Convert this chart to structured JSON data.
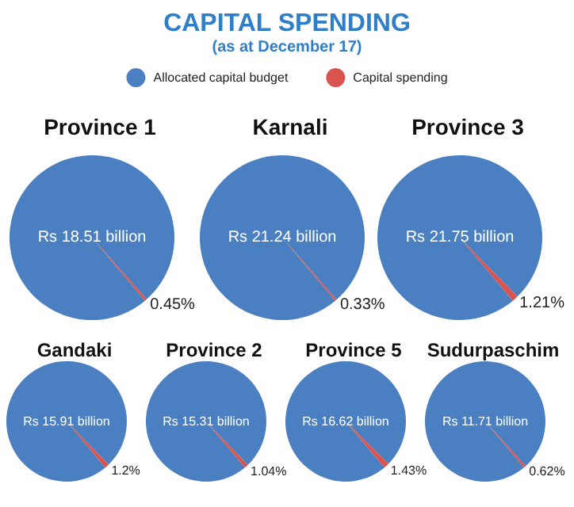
{
  "chart_data": [
    {
      "type": "other",
      "title": "CAPITAL SPENDING",
      "subtitle": "(as at December 17)"
    },
    {
      "type": "pie",
      "title": "Province 1",
      "categories": [
        "Allocated capital budget",
        "Capital spending"
      ],
      "values": [
        99.55,
        0.45
      ],
      "colors": [
        "#4a7fc1",
        "#d9534f"
      ],
      "value_labels": [
        "Rs 18.51 billion",
        "0.45%"
      ],
      "legend": "top"
    },
    {
      "type": "pie",
      "title": "Karnali",
      "categories": [
        null,
        null
      ],
      "values": [
        99.67,
        0.33
      ],
      "colors": [
        "#4a7fc1",
        "#d9534f"
      ],
      "value_labels": [
        "Rs 21.24 billion",
        "0.33%"
      ]
    },
    {
      "type": "pie",
      "title": "Province 3",
      "categories": [
        null,
        null
      ],
      "values": [
        98.79,
        1.21
      ],
      "colors": [
        "#4a7fc1",
        "#d9534f"
      ],
      "value_labels": [
        "Rs 21.75 billion",
        "1.21%"
      ]
    },
    {
      "type": "pie",
      "title": "Gandaki",
      "categories": [
        null,
        null
      ],
      "values": [
        98.8,
        1.2
      ],
      "colors": [
        "#4a7fc1",
        "#d9534f"
      ],
      "value_labels": [
        "Rs 15.91 billion",
        "1.2%"
      ]
    },
    {
      "type": "pie",
      "title": "Province 2",
      "categories": [
        null,
        null
      ],
      "values": [
        98.96,
        1.04
      ],
      "colors": [
        "#4a7fc1",
        "#d9534f"
      ],
      "value_labels": [
        "Rs 15.31 billion",
        "1.04%"
      ]
    },
    {
      "type": "pie",
      "title": "Province 5",
      "categories": [
        null,
        null
      ],
      "values": [
        98.57,
        1.43
      ],
      "colors": [
        "#4a7fc1",
        "#d9534f"
      ],
      "value_labels": [
        "Rs 16.62 billion",
        "1.43%"
      ]
    },
    {
      "type": "pie",
      "title": "Sudurpaschim",
      "categories": [
        null,
        null
      ],
      "values": [
        99.38,
        0.62
      ],
      "colors": [
        "#4a7fc1",
        "#d9534f"
      ],
      "value_labels": [
        "Rs 11.71 billion",
        "0.62%"
      ]
    }
  ]
}
